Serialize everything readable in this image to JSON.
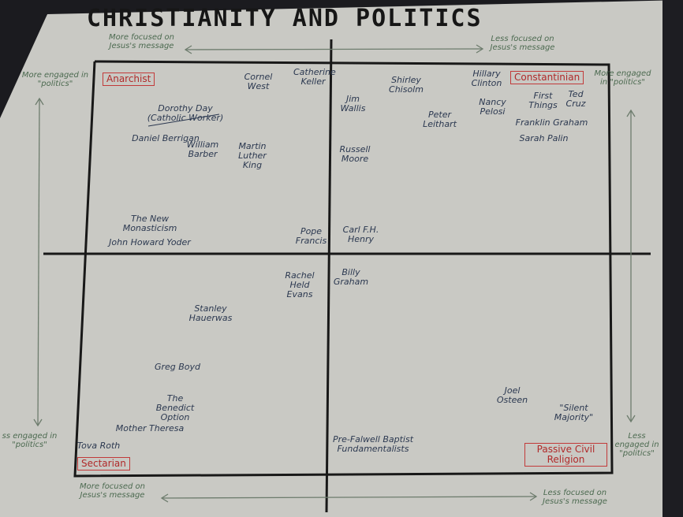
{
  "title": "CHRISTIANITY AND POLITICS",
  "axis_labels": {
    "top_left": "More focused on Jesus's message",
    "top_right": "Less focused on Jesus's message",
    "bottom_left": "More focused on Jesus's message",
    "bottom_right": "Less focused on Jesus's message",
    "left_top": "More engaged in \"politics\"",
    "left_bottom": "ss engaged in \"politics\"",
    "right_top": "More engaged in \"politics\"",
    "right_bottom": "Less engaged in \"politics\""
  },
  "quadrant_labels": {
    "top_left": "Anarchist",
    "top_right": "Constantinian",
    "bottom_left": "Sectarian",
    "bottom_right": "Passive Civil Religion"
  },
  "names": [
    "Cornel West",
    "Catherine Keller",
    "Dorothy Day (Catholic Worker)",
    "Daniel Berrigan",
    "William Barber",
    "Martin Luther King",
    "The New Monasticism",
    "John Howard Yoder",
    "Pope Francis",
    "Jim Wallis",
    "Shirley Chisolm",
    "Peter Leithart",
    "Hillary Clinton",
    "Nancy Pelosi",
    "First Things",
    "Ted Cruz",
    "Franklin Graham",
    "Sarah Palin",
    "Russell Moore",
    "Carl F.H. Henry",
    "Rachel Held Evans",
    "Billy Graham",
    "Stanley Hauerwas",
    "Greg Boyd",
    "The Benedict Option",
    "Mother Theresa",
    "Tova Roth",
    "Joel Osteen",
    "\"Silent Majority\"",
    "Pre-Falwell Baptist Fundamentalists"
  ]
}
